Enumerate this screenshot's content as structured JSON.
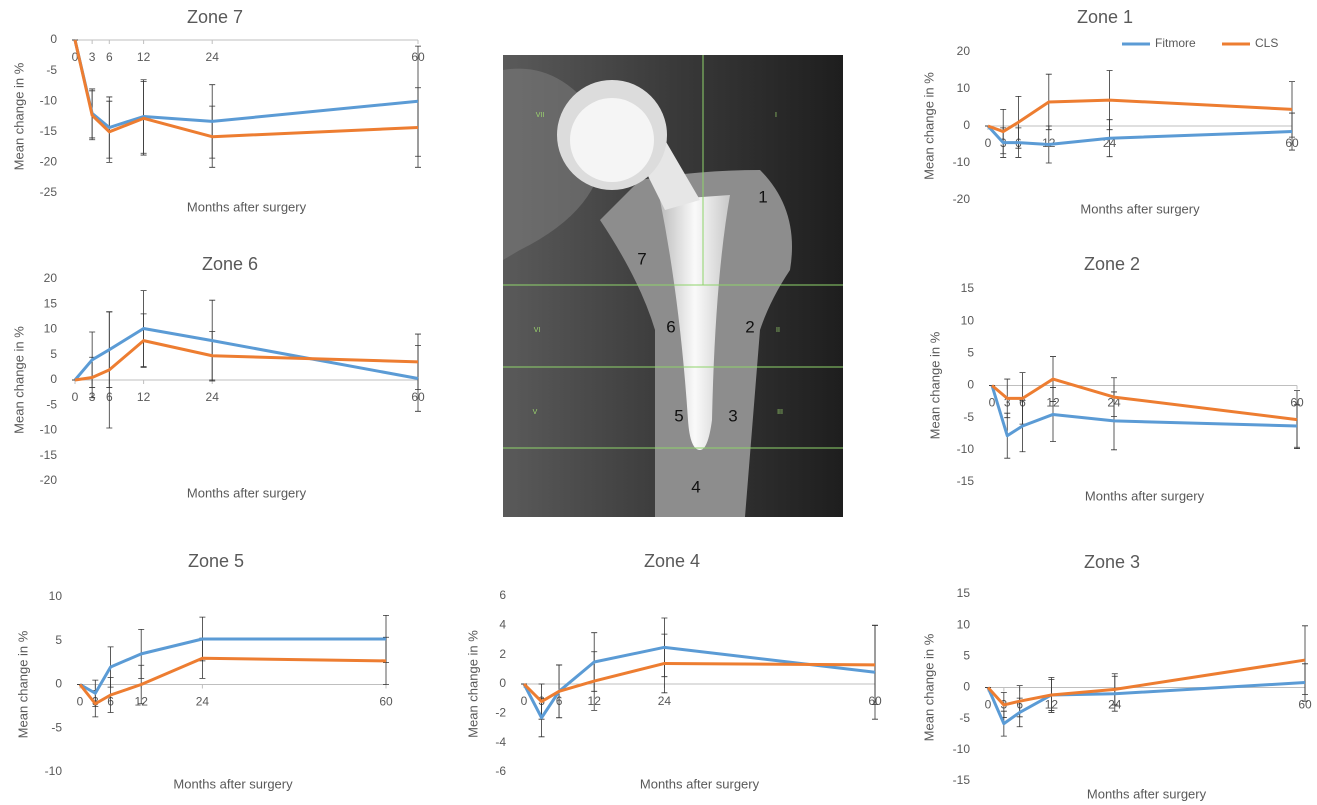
{
  "chart_data": [
    {
      "type": "line",
      "title": "Zone 7",
      "x": [
        0,
        3,
        6,
        12,
        24,
        60
      ],
      "xlim": [
        0,
        60
      ],
      "xticks": [
        0,
        3,
        6,
        12,
        24,
        60
      ],
      "ylim": [
        -25,
        0
      ],
      "yticks": [
        0,
        -5,
        -10,
        -15,
        -20,
        -25
      ],
      "x_label": "Months after surgery",
      "y_label": "Mean change in %",
      "series": [
        {
          "name": "Fitmore",
          "color": "#5b9bd5",
          "values": [
            0,
            -12,
            -14.3,
            -12.5,
            -13.3,
            -10
          ],
          "errors": [
            0,
            4,
            5,
            6,
            6,
            9
          ]
        },
        {
          "name": "CLS",
          "color": "#ed7d31",
          "values": [
            0,
            -12.3,
            -15,
            -12.8,
            -15.8,
            -14.3
          ],
          "errors": [
            0,
            4,
            5,
            6,
            5,
            6.5
          ]
        }
      ]
    },
    {
      "type": "line",
      "title": "Zone 6",
      "x": [
        0,
        3,
        6,
        12,
        24,
        60
      ],
      "xlim": [
        0,
        60
      ],
      "xticks": [
        0,
        3,
        6,
        12,
        24,
        60
      ],
      "ylim": [
        -20,
        20
      ],
      "yticks": [
        20,
        15,
        10,
        5,
        0,
        -5,
        -10,
        -15,
        -20
      ],
      "x_label": "Months after surgery",
      "y_label": "Mean change in %",
      "series": [
        {
          "name": "Fitmore",
          "color": "#5b9bd5",
          "values": [
            0,
            4,
            6,
            10.2,
            7.8,
            0.3
          ],
          "errors": [
            0,
            5.5,
            7.5,
            7.5,
            8,
            6.5
          ]
        },
        {
          "name": "CLS",
          "color": "#ed7d31",
          "values": [
            0,
            0.5,
            2,
            7.8,
            4.8,
            3.6
          ],
          "errors": [
            0,
            4,
            11.5,
            5.3,
            4.8,
            5.5
          ]
        }
      ]
    },
    {
      "type": "line",
      "title": "Zone 1",
      "x": [
        0,
        3,
        6,
        12,
        24,
        60
      ],
      "xlim": [
        0,
        60
      ],
      "xticks": [
        0,
        3,
        6,
        12,
        24,
        60
      ],
      "ylim": [
        -20,
        20
      ],
      "yticks": [
        20,
        10,
        0,
        -10,
        -20
      ],
      "x_label": "Months after surgery",
      "y_label": "Mean change in %",
      "legend": "top-right",
      "series": [
        {
          "name": "Fitmore",
          "color": "#5b9bd5",
          "values": [
            0,
            -4.5,
            -4.5,
            -5,
            -3.3,
            -1.5
          ],
          "errors": [
            0,
            4,
            4,
            5,
            5,
            5
          ]
        },
        {
          "name": "CLS",
          "color": "#ed7d31",
          "values": [
            0,
            -1.5,
            1,
            6.5,
            7,
            4.5
          ],
          "errors": [
            0,
            6,
            7,
            7.5,
            8,
            7.5
          ]
        }
      ]
    },
    {
      "type": "line",
      "title": "Zone 2",
      "x": [
        0,
        3,
        6,
        12,
        24,
        60
      ],
      "xlim": [
        0,
        60
      ],
      "xticks": [
        0,
        3,
        6,
        12,
        24,
        60
      ],
      "ylim": [
        -15,
        15
      ],
      "yticks": [
        15,
        10,
        5,
        0,
        -5,
        -10,
        -15
      ],
      "x_label": "Months after surgery",
      "y_label": "Mean change in %",
      "series": [
        {
          "name": "Fitmore",
          "color": "#5b9bd5",
          "values": [
            0,
            -7.8,
            -6.3,
            -4.5,
            -5.5,
            -6.3
          ],
          "errors": [
            0,
            3.5,
            4,
            4.2,
            4.5,
            3.3
          ]
        },
        {
          "name": "CLS",
          "color": "#ed7d31",
          "values": [
            0,
            -2,
            -2,
            1,
            -1.8,
            -5.3
          ],
          "errors": [
            0,
            3,
            4,
            3.5,
            3,
            4.5
          ]
        }
      ]
    },
    {
      "type": "line",
      "title": "Zone 5",
      "x": [
        0,
        3,
        6,
        12,
        24,
        60
      ],
      "xlim": [
        0,
        60
      ],
      "xticks": [
        0,
        3,
        6,
        12,
        24,
        60
      ],
      "ylim": [
        -10,
        10
      ],
      "yticks": [
        10,
        5,
        0,
        -5,
        -10
      ],
      "x_label": "Months after surgery",
      "y_label": "Mean change in %",
      "series": [
        {
          "name": "Fitmore",
          "color": "#5b9bd5",
          "values": [
            0,
            -1,
            2,
            3.5,
            5.2,
            5.2
          ],
          "errors": [
            0,
            1.5,
            2.3,
            2.8,
            2.5,
            2.7
          ]
        },
        {
          "name": "CLS",
          "color": "#ed7d31",
          "values": [
            0,
            -2.2,
            -1.2,
            0,
            3,
            2.7
          ],
          "errors": [
            0,
            1.5,
            2,
            2.2,
            2.3,
            2.7
          ]
        }
      ]
    },
    {
      "type": "line",
      "title": "Zone 4",
      "x": [
        0,
        3,
        6,
        12,
        24,
        60
      ],
      "xlim": [
        0,
        60
      ],
      "xticks": [
        0,
        3,
        6,
        12,
        24,
        60
      ],
      "ylim": [
        -6,
        6
      ],
      "yticks": [
        6,
        4,
        2,
        0,
        -2,
        -4,
        -6
      ],
      "x_label": "Months after surgery",
      "y_label": "Mean change in %",
      "series": [
        {
          "name": "Fitmore",
          "color": "#5b9bd5",
          "values": [
            0,
            -2.3,
            -0.5,
            1.5,
            2.5,
            0.8
          ],
          "errors": [
            0,
            1.3,
            1.8,
            2,
            2,
            3.2
          ]
        },
        {
          "name": "CLS",
          "color": "#ed7d31",
          "values": [
            0,
            -1.2,
            -0.5,
            0.2,
            1.4,
            1.3
          ],
          "errors": [
            0,
            1.2,
            1.8,
            2,
            2,
            2.7
          ]
        }
      ]
    },
    {
      "type": "line",
      "title": "Zone 3",
      "x": [
        0,
        3,
        6,
        12,
        24,
        60
      ],
      "xlim": [
        0,
        60
      ],
      "xticks": [
        0,
        3,
        6,
        12,
        24,
        60
      ],
      "ylim": [
        -15,
        15
      ],
      "yticks": [
        15,
        10,
        5,
        0,
        -5,
        -10,
        -15
      ],
      "x_label": "Months after surgery",
      "y_label": "Mean change in %",
      "series": [
        {
          "name": "Fitmore",
          "color": "#5b9bd5",
          "values": [
            0,
            -5.8,
            -4,
            -1.2,
            -1,
            0.8
          ],
          "errors": [
            0,
            2,
            2.3,
            2.5,
            2.8,
            3
          ]
        },
        {
          "name": "CLS",
          "color": "#ed7d31",
          "values": [
            0,
            -2.8,
            -2.2,
            -1.2,
            -0.3,
            4.4
          ],
          "errors": [
            0,
            2,
            2.5,
            2.8,
            2.5,
            5.5
          ]
        }
      ]
    }
  ],
  "radiograph": {
    "zone_labels": [
      "1",
      "2",
      "3",
      "4",
      "5",
      "6",
      "7"
    ],
    "roman_labels": [
      "I",
      "II",
      "III",
      "V",
      "VI",
      "VII"
    ]
  }
}
